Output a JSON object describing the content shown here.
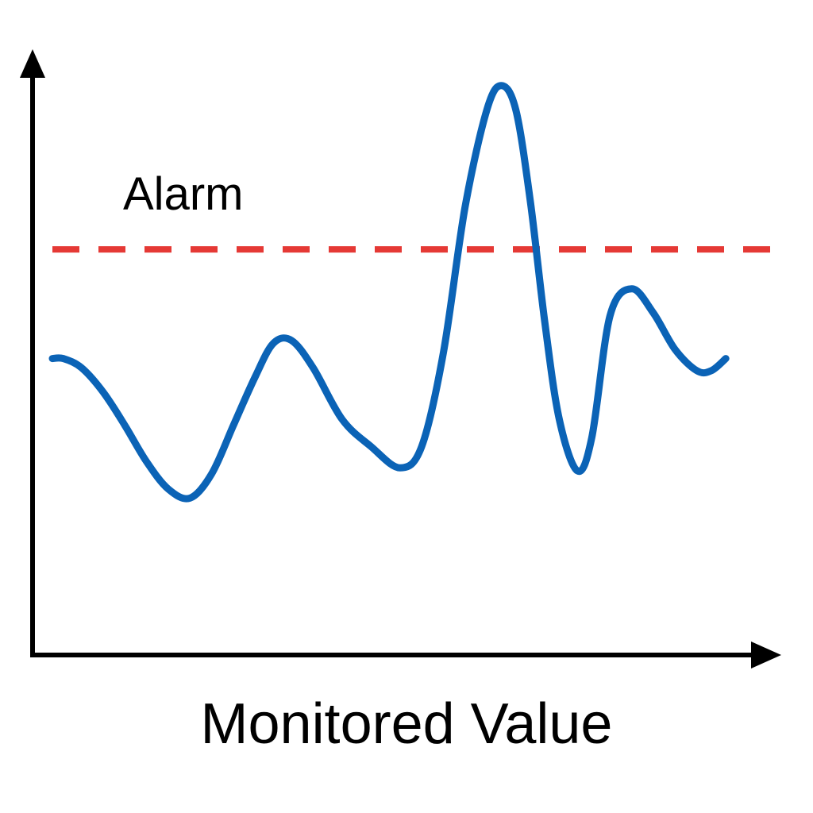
{
  "chart_data": {
    "type": "line",
    "title": "",
    "xlabel": "Monitored Value",
    "ylabel": "",
    "xlim": [
      0,
      100
    ],
    "ylim": [
      0,
      100
    ],
    "grid": false,
    "legend": "none",
    "series": [
      {
        "values": [
          [
            0,
            49
          ],
          [
            1.5,
            49
          ],
          [
            4,
            47.5
          ],
          [
            7,
            43.5
          ],
          [
            10,
            38
          ],
          [
            13,
            32
          ],
          [
            16,
            27.5
          ],
          [
            19,
            26
          ],
          [
            22,
            30
          ],
          [
            25,
            38
          ],
          [
            28,
            46
          ],
          [
            30.5,
            51.5
          ],
          [
            33,
            52
          ],
          [
            36,
            47.5
          ],
          [
            40,
            39
          ],
          [
            44,
            34.5
          ],
          [
            48,
            31
          ],
          [
            51,
            34.5
          ],
          [
            54,
            50
          ],
          [
            57,
            74
          ],
          [
            60,
            90
          ],
          [
            62,
            94
          ],
          [
            64,
            90
          ],
          [
            66,
            75
          ],
          [
            68,
            55
          ],
          [
            70,
            39
          ],
          [
            72.5,
            30.5
          ],
          [
            74.5,
            36
          ],
          [
            77,
            56
          ],
          [
            80,
            60.5
          ],
          [
            83,
            56.5
          ],
          [
            86,
            50.5
          ],
          [
            89,
            47
          ],
          [
            91,
            47
          ],
          [
            93,
            49
          ]
        ]
      }
    ],
    "threshold": {
      "label": "Alarm",
      "value": 67
    },
    "colors": {
      "series": "#0b63b6",
      "threshold": "#e53935",
      "axis": "#000000"
    }
  }
}
